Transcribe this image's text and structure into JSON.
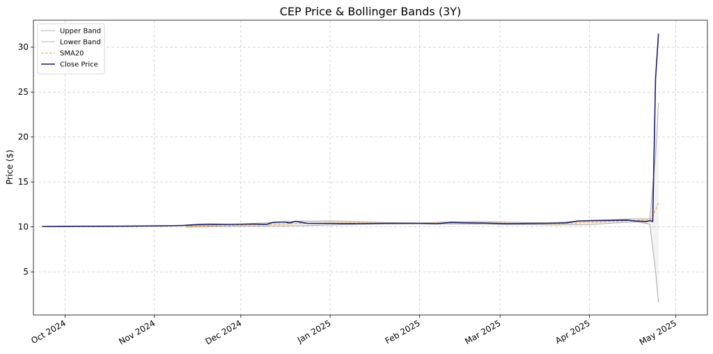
{
  "chart_data": {
    "type": "line",
    "title": "CEP Price & Bollinger Bands (3Y)",
    "xlabel": "",
    "ylabel": "Price ($)",
    "ylim": [
      0.2,
      33
    ],
    "grid": true,
    "legend_position": "top-left",
    "x_ticks": [
      {
        "date": "2024-10-01",
        "label": "Oct 2024"
      },
      {
        "date": "2024-11-01",
        "label": "Nov 2024"
      },
      {
        "date": "2024-12-01",
        "label": "Dec 2024"
      },
      {
        "date": "2025-01-01",
        "label": "Jan 2025"
      },
      {
        "date": "2025-02-01",
        "label": "Feb 2025"
      },
      {
        "date": "2025-03-01",
        "label": "Mar 2025"
      },
      {
        "date": "2025-04-01",
        "label": "Apr 2025"
      },
      {
        "date": "2025-05-01",
        "label": "May 2025"
      }
    ],
    "y_ticks": [
      5,
      10,
      15,
      20,
      25,
      30
    ],
    "xlim": [
      "2024-09-20",
      "2025-05-12"
    ],
    "series": [
      {
        "name": "Upper Band",
        "style": "solid",
        "color": "#b0b0b0",
        "points": [
          [
            "2024-11-12",
            10.12
          ],
          [
            "2024-11-20",
            10.18
          ],
          [
            "2024-12-01",
            10.32
          ],
          [
            "2024-12-10",
            10.45
          ],
          [
            "2024-12-20",
            10.62
          ],
          [
            "2025-01-01",
            10.66
          ],
          [
            "2025-01-10",
            10.6
          ],
          [
            "2025-01-20",
            10.48
          ],
          [
            "2025-02-01",
            10.44
          ],
          [
            "2025-02-10",
            10.55
          ],
          [
            "2025-02-20",
            10.6
          ],
          [
            "2025-03-01",
            10.55
          ],
          [
            "2025-03-10",
            10.48
          ],
          [
            "2025-03-20",
            10.46
          ],
          [
            "2025-04-01",
            10.72
          ],
          [
            "2025-04-10",
            10.82
          ],
          [
            "2025-04-18",
            10.92
          ],
          [
            "2025-04-22",
            10.9
          ],
          [
            "2025-04-24",
            18.0
          ],
          [
            "2025-04-25",
            23.8
          ]
        ]
      },
      {
        "name": "Lower Band",
        "style": "solid",
        "color": "#b0b0b0",
        "points": [
          [
            "2024-11-12",
            9.98
          ],
          [
            "2024-11-20",
            10.0
          ],
          [
            "2024-12-01",
            10.08
          ],
          [
            "2024-12-10",
            10.1
          ],
          [
            "2024-12-20",
            10.12
          ],
          [
            "2025-01-01",
            10.2
          ],
          [
            "2025-01-10",
            10.28
          ],
          [
            "2025-01-20",
            10.32
          ],
          [
            "2025-02-01",
            10.34
          ],
          [
            "2025-02-10",
            10.32
          ],
          [
            "2025-02-20",
            10.3
          ],
          [
            "2025-03-01",
            10.28
          ],
          [
            "2025-03-10",
            10.25
          ],
          [
            "2025-03-20",
            10.22
          ],
          [
            "2025-04-01",
            10.25
          ],
          [
            "2025-04-10",
            10.45
          ],
          [
            "2025-04-18",
            10.55
          ],
          [
            "2025-04-22",
            10.3
          ],
          [
            "2025-04-24",
            5.0
          ],
          [
            "2025-04-25",
            1.6
          ]
        ]
      },
      {
        "name": "SMA20",
        "style": "dashed",
        "color": "#ff9f1c",
        "points": [
          [
            "2024-11-12",
            10.05
          ],
          [
            "2024-11-20",
            10.09
          ],
          [
            "2024-12-01",
            10.2
          ],
          [
            "2024-12-10",
            10.28
          ],
          [
            "2024-12-20",
            10.37
          ],
          [
            "2025-01-01",
            10.43
          ],
          [
            "2025-01-10",
            10.44
          ],
          [
            "2025-01-20",
            10.4
          ],
          [
            "2025-02-01",
            10.39
          ],
          [
            "2025-02-10",
            10.43
          ],
          [
            "2025-02-20",
            10.45
          ],
          [
            "2025-03-01",
            10.42
          ],
          [
            "2025-03-10",
            10.37
          ],
          [
            "2025-03-20",
            10.34
          ],
          [
            "2025-04-01",
            10.48
          ],
          [
            "2025-04-10",
            10.63
          ],
          [
            "2025-04-18",
            10.73
          ],
          [
            "2025-04-22",
            10.75
          ],
          [
            "2025-04-23",
            11.2
          ],
          [
            "2025-04-24",
            11.9
          ],
          [
            "2025-04-25",
            12.7
          ]
        ]
      },
      {
        "name": "Close Price",
        "style": "solid",
        "color": "#191970",
        "points": [
          [
            "2024-09-23",
            10.05
          ],
          [
            "2024-09-30",
            10.06
          ],
          [
            "2024-10-07",
            10.07
          ],
          [
            "2024-10-14",
            10.07
          ],
          [
            "2024-10-21",
            10.08
          ],
          [
            "2024-10-28",
            10.1
          ],
          [
            "2024-11-04",
            10.12
          ],
          [
            "2024-11-11",
            10.16
          ],
          [
            "2024-11-15",
            10.25
          ],
          [
            "2024-11-20",
            10.3
          ],
          [
            "2024-11-27",
            10.28
          ],
          [
            "2024-12-05",
            10.32
          ],
          [
            "2024-12-10",
            10.28
          ],
          [
            "2024-12-12",
            10.5
          ],
          [
            "2024-12-16",
            10.55
          ],
          [
            "2024-12-18",
            10.45
          ],
          [
            "2024-12-20",
            10.62
          ],
          [
            "2024-12-24",
            10.4
          ],
          [
            "2025-01-01",
            10.38
          ],
          [
            "2025-01-10",
            10.36
          ],
          [
            "2025-01-20",
            10.4
          ],
          [
            "2025-02-01",
            10.4
          ],
          [
            "2025-02-07",
            10.35
          ],
          [
            "2025-02-12",
            10.5
          ],
          [
            "2025-02-17",
            10.45
          ],
          [
            "2025-02-24",
            10.42
          ],
          [
            "2025-03-03",
            10.35
          ],
          [
            "2025-03-10",
            10.38
          ],
          [
            "2025-03-17",
            10.4
          ],
          [
            "2025-03-24",
            10.45
          ],
          [
            "2025-03-28",
            10.65
          ],
          [
            "2025-04-03",
            10.7
          ],
          [
            "2025-04-08",
            10.72
          ],
          [
            "2025-04-14",
            10.75
          ],
          [
            "2025-04-17",
            10.65
          ],
          [
            "2025-04-21",
            10.6
          ],
          [
            "2025-04-22",
            10.7
          ],
          [
            "2025-04-23",
            10.6
          ],
          [
            "2025-04-24",
            26.5
          ],
          [
            "2025-04-25",
            31.5
          ]
        ]
      }
    ],
    "band_fill": {
      "color": "#d3d3d3",
      "opacity": 0.3,
      "between": [
        "Upper Band",
        "Lower Band"
      ]
    }
  }
}
